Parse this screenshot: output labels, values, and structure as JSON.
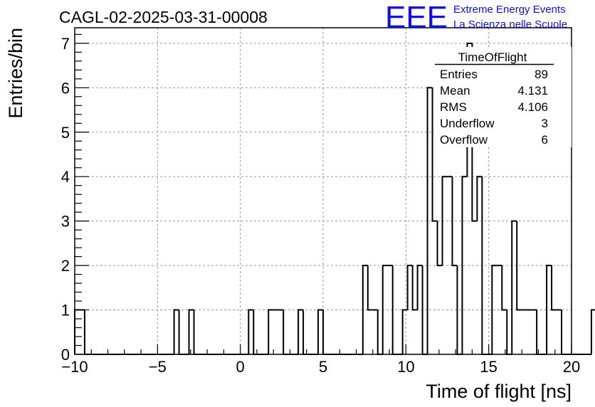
{
  "header": {
    "run_title": "CAGL-02-2025-03-31-00008",
    "logo_text": "EEE",
    "logo_line1": "Extreme Energy Events",
    "logo_line2": "La Scienza nelle Scuole",
    "logo_color": "#1010e0"
  },
  "stats": {
    "name": "TimeOfFlight",
    "rows": [
      {
        "label": "Entries",
        "value": "89"
      },
      {
        "label": "Mean",
        "value": "4.131"
      },
      {
        "label": "RMS",
        "value": "4.106"
      },
      {
        "label": "Underflow",
        "value": "3"
      },
      {
        "label": "Overflow",
        "value": "6"
      }
    ]
  },
  "chart_data": {
    "type": "bar",
    "histogram": true,
    "title": "",
    "xlabel": "Time of flight [ns]",
    "ylabel": "Entries/bin",
    "xlim": [
      -10,
      20
    ],
    "ylim": [
      0,
      7.35
    ],
    "grid": true,
    "bin_width": 0.3,
    "x_ticks": [
      -10,
      -5,
      0,
      5,
      10,
      15,
      20
    ],
    "x_tick_labels": [
      "−10",
      "−5",
      "0",
      "5",
      "10",
      "15",
      "20"
    ],
    "y_ticks": [
      0,
      1,
      2,
      3,
      4,
      5,
      6,
      7
    ],
    "y_tick_labels": [
      "0",
      "1",
      "2",
      "3",
      "4",
      "5",
      "6",
      "7"
    ],
    "values": [
      1,
      1,
      0,
      0,
      0,
      0,
      0,
      0,
      0,
      0,
      0,
      0,
      0,
      0,
      0,
      0,
      0,
      0,
      0,
      0,
      1,
      0,
      0,
      1,
      0,
      0,
      0,
      0,
      0,
      0,
      0,
      0,
      0,
      0,
      0,
      1,
      0,
      0,
      0,
      1,
      1,
      1,
      0,
      0,
      0,
      1,
      0,
      0,
      0,
      1,
      0,
      0,
      0,
      0,
      0,
      0,
      0,
      0,
      2,
      1,
      1,
      0,
      2,
      2,
      0,
      0,
      1,
      2,
      1,
      2,
      0,
      6,
      3,
      2,
      4,
      4,
      2,
      0,
      4,
      7,
      3,
      4,
      0,
      0,
      2,
      2,
      1,
      0,
      3,
      1,
      1,
      1,
      1,
      0,
      0,
      2,
      1,
      1,
      0,
      0,
      0,
      0,
      0,
      0,
      1,
      0,
      0,
      0,
      0,
      0,
      0,
      0,
      0,
      0,
      0,
      0,
      0,
      0,
      0,
      0,
      0,
      0,
      0,
      0,
      0,
      0,
      0,
      0,
      0,
      0,
      0,
      0,
      0,
      0,
      0,
      0,
      0,
      0,
      0,
      0
    ]
  }
}
